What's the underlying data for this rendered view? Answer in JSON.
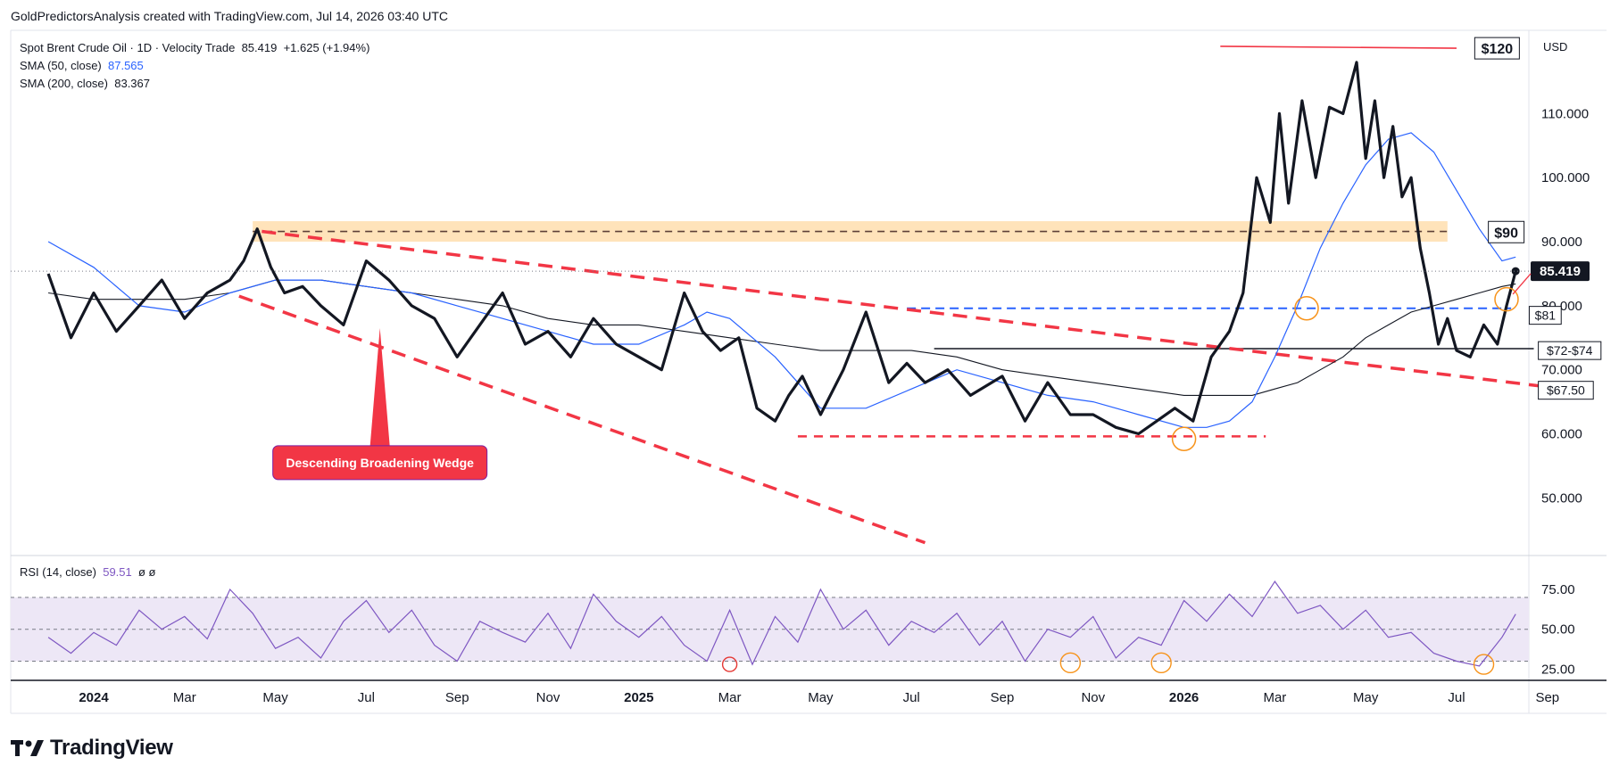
{
  "header": {
    "credit": "GoldPredictorsAnalysis created with TradingView.com, Jul 14, 2026 03:40 UTC"
  },
  "legend": {
    "symbol": "Spot Brent Crude Oil · 1D · Velocity Trade",
    "last": "85.419",
    "change": "+1.625 (+1.94%)",
    "sma50_label": "SMA (50, close)",
    "sma50_value": "87.565",
    "sma200_label": "SMA (200, close)",
    "sma200_value": "83.367"
  },
  "currency": "USD",
  "rsi_legend": {
    "label": "RSI (14, close)",
    "value": "59.51",
    "extra": "ø  ø"
  },
  "logo": {
    "text": "TradingView"
  },
  "colors": {
    "price": "#131722",
    "sma50": "#2962ff",
    "sma200": "#131722",
    "wedge": "#f23645",
    "resistance_band": "#ffe0b2",
    "rsi": "#7e57c2",
    "rsi_band": "#ede7f6",
    "circle_orange": "#f7931a",
    "circle_red": "#e53935"
  },
  "chart_data": [
    {
      "type": "line",
      "title": "Spot Brent Crude Oil · 1D · Velocity Trade",
      "ylim": [
        41,
        123
      ],
      "y_ticks": [
        "50.000",
        "60.000",
        "70.000",
        "80.000",
        "90.000",
        "100.000",
        "110.000"
      ],
      "x_ticks": [
        "2024",
        "Mar",
        "May",
        "Jul",
        "Sep",
        "Nov",
        "2025",
        "Mar",
        "May",
        "Jul",
        "Sep",
        "Nov",
        "2026",
        "Mar",
        "May",
        "Jul",
        "Sep"
      ],
      "x_tick_index": [
        0,
        2,
        4,
        6,
        8,
        10,
        12,
        14,
        16,
        18,
        20,
        22,
        24,
        26,
        28,
        30,
        32
      ],
      "last_price_label": "85.419",
      "series": [
        {
          "name": "Spot Brent Crude Oil",
          "x": [
            -1.0,
            -0.5,
            0.0,
            0.5,
            1.0,
            1.5,
            2.0,
            2.5,
            3.0,
            3.3,
            3.6,
            3.9,
            4.2,
            4.6,
            5.0,
            5.5,
            6.0,
            6.5,
            7.0,
            7.5,
            8.0,
            8.5,
            9.0,
            9.5,
            10.0,
            10.5,
            11.0,
            11.5,
            12.0,
            12.5,
            13.0,
            13.4,
            13.8,
            14.2,
            14.6,
            15.0,
            15.3,
            15.6,
            16.0,
            16.5,
            17.0,
            17.5,
            17.9,
            18.3,
            18.8,
            19.3,
            20.0,
            20.5,
            21.0,
            21.5,
            22.0,
            22.5,
            23.0,
            23.4,
            23.8,
            24.2,
            24.6,
            25.0,
            25.3,
            25.6,
            25.9,
            26.1,
            26.3,
            26.6,
            26.9,
            27.2,
            27.5,
            27.8,
            28.0,
            28.2,
            28.4,
            28.6,
            28.8,
            29.0,
            29.2,
            29.4,
            29.6,
            29.8,
            30.0,
            30.3,
            30.6,
            30.9,
            31.1,
            31.3
          ],
          "values": [
            85,
            75,
            82,
            76,
            80,
            84,
            78,
            82,
            84,
            87,
            92,
            86,
            82,
            83,
            80,
            77,
            87,
            84,
            80,
            78,
            72,
            77,
            82,
            74,
            76,
            72,
            78,
            74,
            72,
            70,
            82,
            76,
            73,
            75,
            64,
            62,
            66,
            69,
            63,
            70,
            79,
            68,
            71,
            68,
            70,
            66,
            69,
            62,
            68,
            63,
            63,
            61,
            60,
            62,
            64,
            62,
            72,
            76,
            82,
            100,
            93,
            110,
            96,
            112,
            100,
            111,
            110,
            118,
            103,
            112,
            100,
            108,
            97,
            100,
            89,
            82,
            74,
            78,
            73,
            72,
            77,
            74,
            80,
            85.4
          ]
        },
        {
          "name": "SMA (50, close)",
          "x": [
            -1.0,
            0.0,
            1.0,
            2.0,
            3.0,
            4.0,
            5.0,
            6.0,
            7.0,
            8.0,
            9.0,
            10.0,
            11.0,
            12.0,
            13.0,
            13.5,
            14.0,
            15.0,
            16.0,
            17.0,
            18.0,
            19.0,
            20.0,
            21.0,
            22.0,
            23.0,
            24.0,
            24.5,
            25.0,
            25.5,
            26.0,
            26.5,
            27.0,
            27.5,
            28.0,
            28.5,
            29.0,
            29.5,
            30.0,
            30.5,
            31.0,
            31.3
          ],
          "values": [
            90,
            86,
            80,
            79,
            82,
            84,
            84,
            83,
            82,
            80,
            78,
            76,
            74,
            74,
            77,
            79,
            78,
            72,
            64,
            64,
            67,
            70,
            68,
            66,
            65,
            63,
            61,
            61,
            62,
            65,
            72,
            80,
            89,
            96,
            102,
            106,
            107,
            104,
            98,
            92,
            87,
            87.6
          ]
        },
        {
          "name": "SMA (200, close)",
          "x": [
            -1.0,
            0.0,
            1.0,
            2.0,
            3.0,
            4.0,
            5.0,
            6.0,
            7.0,
            8.0,
            9.0,
            10.0,
            11.0,
            12.0,
            13.0,
            14.0,
            15.0,
            16.0,
            17.0,
            18.0,
            19.0,
            20.0,
            21.0,
            22.0,
            23.0,
            24.0,
            24.5,
            25.0,
            25.5,
            26.0,
            26.5,
            27.0,
            27.5,
            28.0,
            28.5,
            29.0,
            29.5,
            30.0,
            30.5,
            31.0,
            31.3
          ],
          "values": [
            82,
            81,
            81,
            81,
            82,
            84,
            84,
            83,
            82,
            81,
            80,
            78,
            77,
            77,
            76,
            75,
            74,
            73,
            73,
            73,
            72,
            70,
            69,
            68,
            67,
            66,
            66,
            66,
            66,
            67,
            68,
            70,
            72,
            75,
            77,
            79,
            80,
            81,
            82,
            83,
            83.4
          ]
        }
      ],
      "annotations": [
        {
          "text": "$120",
          "x": 30.4,
          "y": 120.2
        },
        {
          "text": "$90",
          "x": 30.7,
          "y": 91.5
        },
        {
          "text": "$81",
          "x": 31.6,
          "y": 78.5
        },
        {
          "text": "$72-$74",
          "x": 31.8,
          "y": 73
        },
        {
          "text": "$67.50",
          "x": 31.8,
          "y": 66.8
        },
        {
          "text": "Descending Broadening Wedge",
          "x": 6.3,
          "y": 55.5
        }
      ]
    },
    {
      "type": "line",
      "title": "RSI (14, close)",
      "ylim": [
        18,
        94
      ],
      "y_ticks": [
        "25.00",
        "50.00",
        "75.00"
      ],
      "bands": [
        30,
        50,
        70
      ],
      "series": [
        {
          "name": "RSI (14, close)",
          "x": [
            -1.0,
            -0.5,
            0.0,
            0.5,
            1.0,
            1.5,
            2.0,
            2.5,
            3.0,
            3.5,
            4.0,
            4.5,
            5.0,
            5.5,
            6.0,
            6.5,
            7.0,
            7.5,
            8.0,
            8.5,
            9.0,
            9.5,
            10.0,
            10.5,
            11.0,
            11.5,
            12.0,
            12.5,
            13.0,
            13.5,
            14.0,
            14.5,
            15.0,
            15.5,
            16.0,
            16.5,
            17.0,
            17.5,
            18.0,
            18.5,
            19.0,
            19.5,
            20.0,
            20.5,
            21.0,
            21.5,
            22.0,
            22.5,
            23.0,
            23.5,
            24.0,
            24.5,
            25.0,
            25.5,
            26.0,
            26.5,
            27.0,
            27.5,
            28.0,
            28.5,
            29.0,
            29.5,
            30.0,
            30.5,
            31.0,
            31.3
          ],
          "values": [
            45,
            35,
            48,
            40,
            62,
            50,
            58,
            44,
            75,
            60,
            38,
            45,
            32,
            55,
            68,
            48,
            62,
            40,
            30,
            55,
            48,
            42,
            60,
            38,
            72,
            55,
            45,
            58,
            40,
            30,
            62,
            28,
            58,
            42,
            75,
            50,
            62,
            40,
            55,
            48,
            60,
            40,
            55,
            30,
            50,
            45,
            58,
            32,
            45,
            40,
            68,
            55,
            72,
            58,
            80,
            60,
            65,
            50,
            62,
            45,
            48,
            35,
            30,
            27,
            45,
            59.5
          ]
        }
      ],
      "annotations": []
    }
  ]
}
